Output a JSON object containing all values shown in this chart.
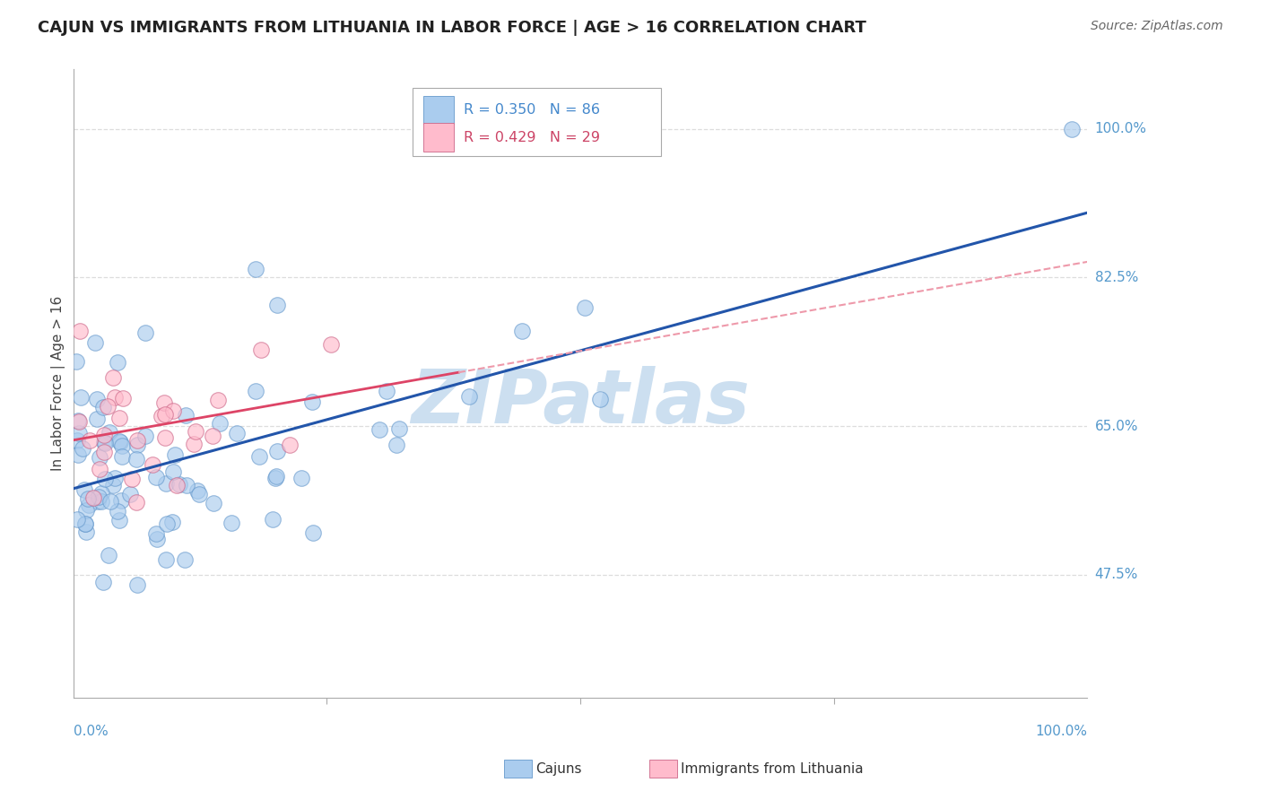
{
  "title": "CAJUN VS IMMIGRANTS FROM LITHUANIA IN LABOR FORCE | AGE > 16 CORRELATION CHART",
  "source": "Source: ZipAtlas.com",
  "ylabel": "In Labor Force | Age > 16",
  "y_tick_labels": [
    "47.5%",
    "65.0%",
    "82.5%",
    "100.0%"
  ],
  "y_tick_values": [
    0.475,
    0.65,
    0.825,
    1.0
  ],
  "xlim": [
    0.0,
    1.0
  ],
  "ylim": [
    0.33,
    1.07
  ],
  "cajun_color": "#aaccee",
  "cajun_edge": "#6699cc",
  "lith_color": "#ffbbcc",
  "lith_edge": "#cc6688",
  "trend_cajun_color": "#2255aa",
  "trend_lith_solid_color": "#dd4466",
  "trend_lith_dash_color": "#ee99aa",
  "watermark": "ZIPatlas",
  "cajun_R": 0.35,
  "cajun_N": 86,
  "lith_R": 0.429,
  "lith_N": 29,
  "grid_color": "#dddddd",
  "label_color": "#5599cc",
  "title_color": "#222222",
  "legend_text_cajun": "#4488cc",
  "legend_text_lith": "#cc4466",
  "marker_size": 160,
  "cajun_seed": 77,
  "lith_seed": 55
}
